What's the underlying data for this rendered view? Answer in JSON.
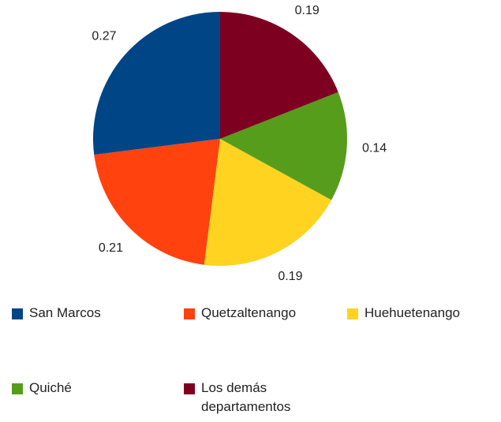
{
  "chart_data": {
    "type": "pie",
    "categories": [
      "San Marcos",
      "Quetzaltenango",
      "Huehuetenango",
      "Quiché",
      "Los demás departamentos"
    ],
    "values": [
      0.27,
      0.21,
      0.19,
      0.14,
      0.19
    ],
    "colors": [
      "#004586",
      "#ff420e",
      "#ffd320",
      "#579d1c",
      "#7e0021"
    ]
  }
}
